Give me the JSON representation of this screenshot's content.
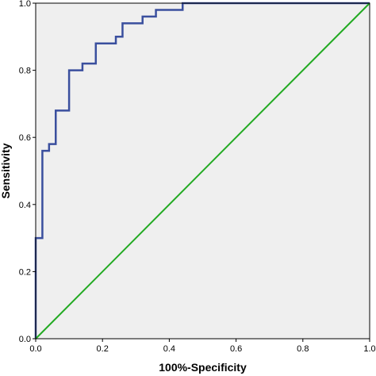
{
  "chart_data": {
    "type": "line",
    "title": "",
    "xlabel": "100%-Specificity",
    "ylabel": "Sensitivity",
    "xlim": [
      0,
      1.0
    ],
    "ylim": [
      0,
      1.0
    ],
    "grid": false,
    "x_ticks": [
      0.0,
      0.2,
      0.4,
      0.6,
      0.8,
      1.0
    ],
    "y_ticks": [
      0.0,
      0.2,
      0.4,
      0.6,
      0.8,
      1.0
    ],
    "x_tick_labels": [
      "0.0",
      "0.2",
      "0.4",
      "0.6",
      "0.8",
      "1.0"
    ],
    "y_tick_labels": [
      "0.0",
      "0.2",
      "0.4",
      "0.6",
      "0.8",
      "1.0"
    ],
    "series": [
      {
        "color": "#3a4f9e",
        "x": [
          0.0,
          0.0,
          0.02,
          0.02,
          0.04,
          0.04,
          0.06,
          0.06,
          0.1,
          0.1,
          0.14,
          0.14,
          0.18,
          0.18,
          0.24,
          0.24,
          0.26,
          0.26,
          0.32,
          0.32,
          0.36,
          0.36,
          0.44,
          0.44,
          1.0
        ],
        "y": [
          0.0,
          0.3,
          0.3,
          0.56,
          0.56,
          0.58,
          0.58,
          0.68,
          0.68,
          0.8,
          0.8,
          0.82,
          0.82,
          0.88,
          0.88,
          0.9,
          0.9,
          0.94,
          0.94,
          0.96,
          0.96,
          0.98,
          0.98,
          1.0,
          1.0
        ]
      },
      {
        "color": "#22aa22",
        "x": [
          0.0,
          1.0
        ],
        "y": [
          0.0,
          1.0
        ]
      }
    ],
    "colors": {
      "plot_background": "#efefef",
      "frame": "#000000"
    }
  }
}
